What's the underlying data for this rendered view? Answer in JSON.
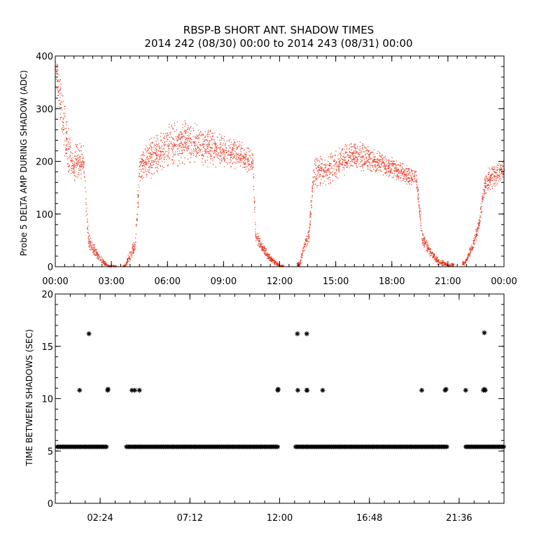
{
  "page": {
    "title_line1": "RBSP-B SHORT ANT. SHADOW TIMES",
    "title_line2": "2014 242 (08/30) 00:00 to 2014 243 (08/31) 00:00"
  },
  "colors": {
    "top_points": "#e8341c",
    "bottom_points": "#000000",
    "axes": "#000000"
  },
  "chart_data": [
    {
      "type": "scatter",
      "title": "RBSP-B SHORT ANT. SHADOW TIMES",
      "ylabel": "Probe 5 DELTA AMP DURING SHADOW (ADC)",
      "xlabel": "",
      "x_unit": "hours",
      "xlim": [
        0,
        24
      ],
      "ylim": [
        0,
        400
      ],
      "x_ticks": [
        0,
        3,
        6,
        9,
        12,
        15,
        18,
        21,
        24
      ],
      "x_tick_labels": [
        "00:00",
        "03:00",
        "06:00",
        "09:00",
        "12:00",
        "15:00",
        "18:00",
        "21:00",
        "00:00"
      ],
      "y_ticks": [
        0,
        100,
        200,
        300,
        400
      ],
      "y_tick_labels": [
        "0",
        "100",
        "200",
        "300",
        "400"
      ],
      "grid": false,
      "series": [
        {
          "name": "delta_amp",
          "description_of_trend": "approximate envelope (center and spread) of the point cloud",
          "x": [
            0.05,
            0.3,
            0.6,
            0.9,
            1.2,
            1.5,
            1.75,
            2.0,
            2.4,
            2.8,
            3.7,
            3.95,
            4.25,
            4.5,
            5.0,
            6.0,
            7.0,
            8.0,
            9.0,
            10.0,
            10.55,
            10.7,
            11.0,
            11.5,
            12.0,
            13.05,
            13.3,
            13.55,
            13.8,
            14.5,
            15.5,
            16.0,
            16.5,
            17.5,
            18.5,
            19.3,
            19.6,
            20.0,
            20.5,
            21.0,
            21.9,
            22.3,
            22.6,
            23.0,
            23.5,
            24.0
          ],
          "center": [
            380,
            300,
            230,
            190,
            200,
            200,
            50,
            35,
            15,
            2,
            2,
            20,
            40,
            190,
            205,
            230,
            235,
            230,
            220,
            210,
            200,
            60,
            40,
            15,
            2,
            5,
            40,
            60,
            180,
            185,
            205,
            215,
            210,
            195,
            180,
            170,
            55,
            30,
            10,
            3,
            8,
            40,
            75,
            160,
            175,
            185
          ],
          "spread": [
            40,
            50,
            60,
            35,
            40,
            35,
            20,
            12,
            8,
            2,
            2,
            12,
            15,
            35,
            40,
            45,
            45,
            40,
            35,
            30,
            25,
            15,
            10,
            8,
            2,
            5,
            10,
            15,
            30,
            35,
            30,
            30,
            30,
            25,
            20,
            20,
            15,
            10,
            8,
            3,
            6,
            10,
            15,
            25,
            25,
            20
          ],
          "gaps": [
            [
              3.25,
              3.6
            ],
            [
              12.2,
              12.9
            ],
            [
              21.3,
              21.75
            ]
          ]
        }
      ]
    },
    {
      "type": "scatter",
      "ylabel": "TIME BETWEEN SHADOWS (SEC)",
      "xlabel": "",
      "x_unit": "hours",
      "xlim": [
        0,
        24
      ],
      "ylim": [
        0,
        20
      ],
      "x_ticks": [
        2.4,
        7.2,
        12.0,
        16.8,
        21.6
      ],
      "x_tick_labels": [
        "02:24",
        "07:12",
        "12:00",
        "16:48",
        "21:36"
      ],
      "y_ticks": [
        0,
        5,
        10,
        15,
        20
      ],
      "y_tick_labels": [
        "0",
        "5",
        "10",
        "15",
        "20"
      ],
      "grid": false,
      "series": [
        {
          "name": "baseline_intervals",
          "value": 5.4,
          "ranges_hours": [
            [
              0.1,
              2.8
            ],
            [
              3.8,
              11.95
            ],
            [
              12.85,
              20.95
            ],
            [
              21.95,
              24.0
            ]
          ]
        },
        {
          "name": "outliers",
          "x": [
            1.3,
            1.8,
            2.8,
            2.82,
            4.1,
            4.25,
            4.5,
            11.9,
            11.92,
            12.95,
            12.97,
            13.45,
            13.47,
            13.45,
            14.3,
            19.6,
            20.85,
            20.9,
            21.95,
            22.9,
            22.95,
            22.95,
            23.0
          ],
          "y": [
            10.8,
            16.2,
            10.8,
            10.9,
            10.8,
            10.8,
            10.8,
            10.8,
            10.9,
            16.2,
            10.8,
            16.2,
            10.8,
            10.8,
            10.8,
            10.8,
            10.8,
            10.9,
            10.8,
            10.8,
            16.3,
            10.9,
            10.8
          ]
        }
      ]
    }
  ]
}
